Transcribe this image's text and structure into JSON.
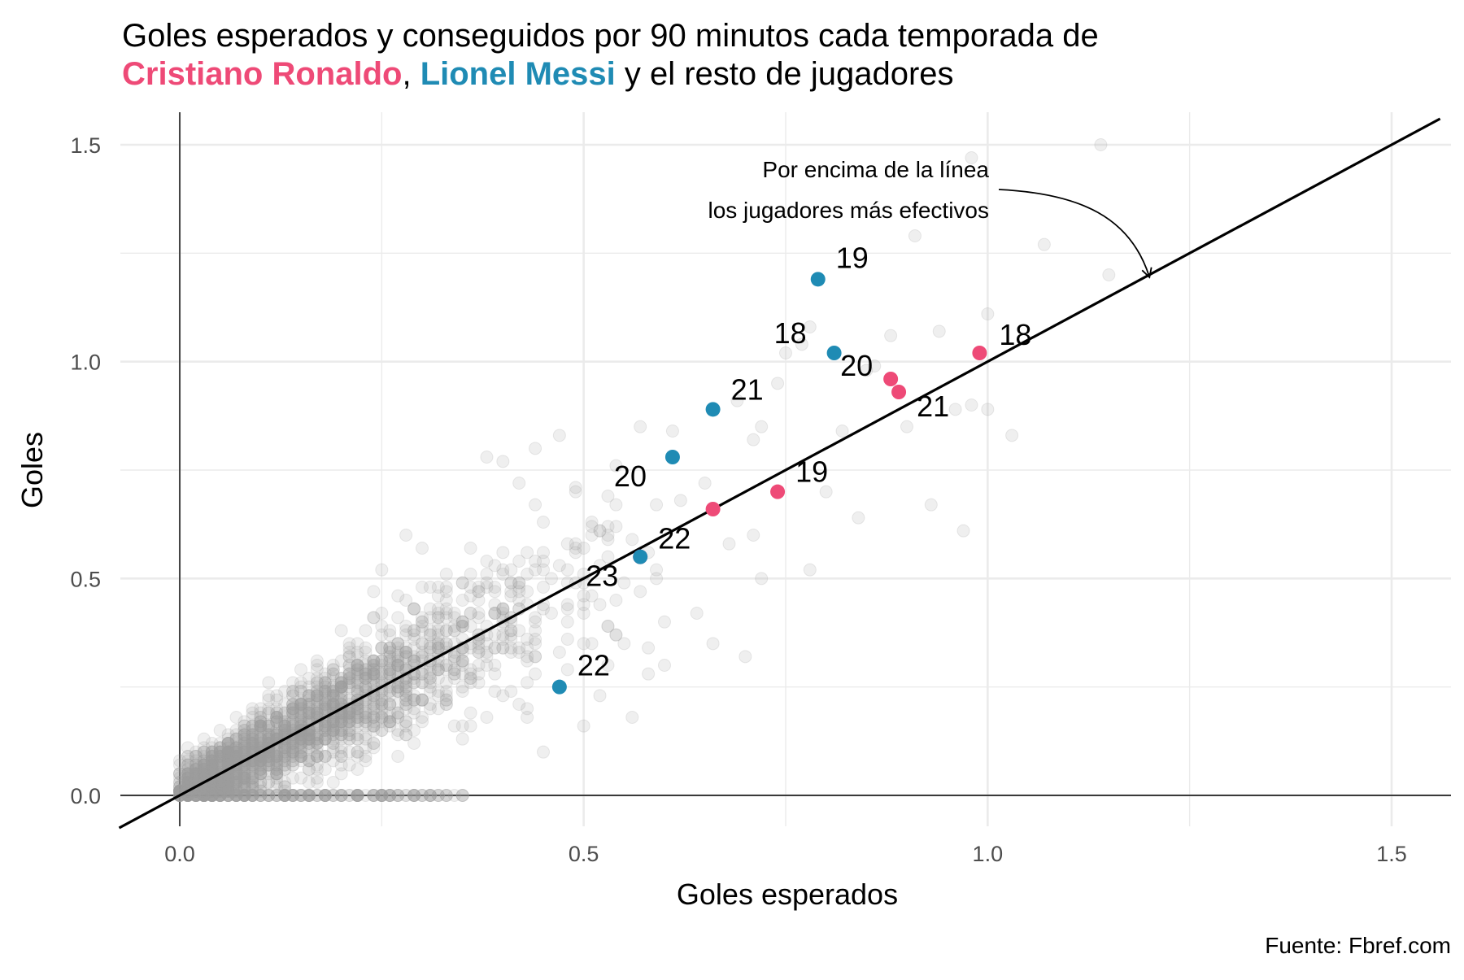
{
  "chart_data": {
    "type": "scatter",
    "title": {
      "line1": "Goles esperados y conseguidos por 90 minutos cada temporada de",
      "line2_parts": [
        {
          "text": "Cristiano Ronaldo",
          "style": "cr"
        },
        {
          "text": ", ",
          "style": "plain"
        },
        {
          "text": "Lionel Messi",
          "style": "lm"
        },
        {
          "text": " y el resto de jugadores",
          "style": "plain"
        }
      ]
    },
    "xlabel": "Goles esperados",
    "ylabel": "Goles",
    "xlim": [
      -0.145,
      1.56
    ],
    "ylim": [
      -0.075,
      1.6
    ],
    "x_ticks": [
      "0.0",
      "0.5",
      "1.0",
      "1.5"
    ],
    "y_ticks": [
      "0.0",
      "0.5",
      "1.0",
      "1.5"
    ],
    "grid": true,
    "reference_line": {
      "slope": 1,
      "intercept": 0
    },
    "annotation": {
      "lines": [
        "Por encima de la línea",
        "los jugadores más efectivos"
      ],
      "arrow_target": {
        "x": 1.2,
        "y": 1.2
      }
    },
    "caption": "Fuente: Fbref.com",
    "colors": {
      "ronaldo": "#ee4a77",
      "messi": "#1f8bb4",
      "others": "#9e9e9e",
      "grid": "#ebebeb"
    },
    "series": [
      {
        "name": "Cristiano Ronaldo",
        "color": "#ee4a77",
        "points": [
          {
            "x": 0.99,
            "y": 1.02,
            "label": "18"
          },
          {
            "x": 0.88,
            "y": 0.96,
            "label": "20"
          },
          {
            "x": 0.89,
            "y": 0.93,
            "label": "21"
          },
          {
            "x": 0.74,
            "y": 0.7,
            "label": "19"
          },
          {
            "x": 0.66,
            "y": 0.66,
            "label": "22"
          },
          {
            "x": 0.57,
            "y": 0.55,
            "label": "23"
          }
        ]
      },
      {
        "name": "Lionel Messi",
        "color": "#1f8bb4",
        "points": [
          {
            "x": 0.79,
            "y": 1.19,
            "label": "19"
          },
          {
            "x": 0.81,
            "y": 1.02,
            "label": "18"
          },
          {
            "x": 0.66,
            "y": 0.89,
            "label": "21"
          },
          {
            "x": 0.61,
            "y": 0.78,
            "label": "20"
          },
          {
            "x": 0.57,
            "y": 0.55,
            "label": "22"
          },
          {
            "x": 0.47,
            "y": 0.25,
            "label": "22"
          }
        ]
      }
    ],
    "others_highlight": [
      [
        1.14,
        1.5
      ],
      [
        0.98,
        1.47
      ],
      [
        1.15,
        1.2
      ],
      [
        1.07,
        1.27
      ],
      [
        0.91,
        1.29
      ],
      [
        1.0,
        1.11
      ],
      [
        0.94,
        1.07
      ],
      [
        0.78,
        1.08
      ],
      [
        1.03,
        0.83
      ],
      [
        1.0,
        0.89
      ],
      [
        0.98,
        0.9
      ],
      [
        0.97,
        0.61
      ],
      [
        0.93,
        0.67
      ],
      [
        0.84,
        0.64
      ],
      [
        0.78,
        0.52
      ],
      [
        0.72,
        0.5
      ],
      [
        0.69,
        0.91
      ],
      [
        0.85,
        0.98
      ],
      [
        0.77,
        1.04
      ],
      [
        0.75,
        1.02
      ],
      [
        0.96,
        0.89
      ],
      [
        0.65,
        0.72
      ],
      [
        0.71,
        0.6
      ],
      [
        0.6,
        0.4
      ],
      [
        0.55,
        0.35
      ],
      [
        0.58,
        0.28
      ],
      [
        0.52,
        0.23
      ],
      [
        0.35,
        0.45
      ],
      [
        0.33,
        0.38
      ],
      [
        0.3,
        0.57
      ],
      [
        0.42,
        0.72
      ],
      [
        0.4,
        0.77
      ],
      [
        0.49,
        0.7
      ],
      [
        0.47,
        0.83
      ],
      [
        0.61,
        0.84
      ],
      [
        0.2,
        0.38
      ],
      [
        0.17,
        0.31
      ],
      [
        0.25,
        0.52
      ],
      [
        0.28,
        0.6
      ],
      [
        0.38,
        0.78
      ],
      [
        0.44,
        0.8
      ],
      [
        0.54,
        0.76
      ],
      [
        0.62,
        0.68
      ],
      [
        0.68,
        0.58
      ],
      [
        0.64,
        0.42
      ],
      [
        0.6,
        0.3
      ],
      [
        0.66,
        0.35
      ],
      [
        0.56,
        0.18
      ],
      [
        0.5,
        0.16
      ],
      [
        0.45,
        0.1
      ],
      [
        0.7,
        0.32
      ],
      [
        0.59,
        0.5
      ],
      [
        0.8,
        0.7
      ],
      [
        0.82,
        0.84
      ],
      [
        0.74,
        0.95
      ],
      [
        0.72,
        0.85
      ],
      [
        0.9,
        0.85
      ],
      [
        0.88,
        1.06
      ],
      [
        0.86,
        0.99
      ]
    ],
    "others_cloud_seed": 20240101,
    "others_cloud_count": 2200
  }
}
